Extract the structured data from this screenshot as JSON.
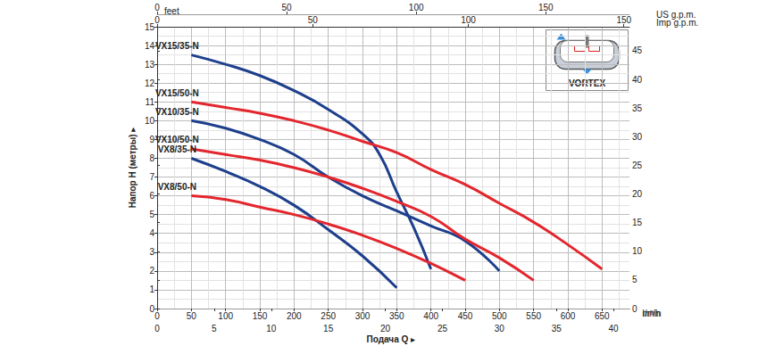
{
  "chart_data": {
    "type": "line",
    "x_axis_title": "Подача Q ▸",
    "y_axis_title": "Напор H (метры) ▸",
    "x_unit": "l/min",
    "xlim": [
      0,
      690
    ],
    "xticks": [
      0,
      50,
      100,
      150,
      200,
      250,
      300,
      350,
      400,
      450,
      500,
      550,
      600,
      650
    ],
    "ylim": [
      0,
      15
    ],
    "yticks": [
      0,
      1,
      2,
      3,
      4,
      5,
      6,
      7,
      8,
      9,
      10,
      11,
      12,
      13,
      14,
      15
    ],
    "y2label": "feet",
    "y2lim": [
      0,
      49.2
    ],
    "y2ticks": [
      0,
      5,
      10,
      15,
      20,
      25,
      30,
      35,
      40,
      45
    ],
    "x2": {
      "label": "US g.p.m.",
      "lim": [
        0,
        182.3
      ],
      "ticks": [
        0,
        50,
        100,
        150
      ]
    },
    "x3": {
      "label": "Imp g.p.m.",
      "lim": [
        0,
        151.8
      ],
      "ticks": [
        0,
        50,
        100,
        150
      ]
    },
    "x4": {
      "label": "m³/h",
      "lim": [
        0,
        41.4
      ],
      "ticks": [
        0,
        5,
        10,
        15,
        20,
        25,
        30,
        35,
        40
      ]
    },
    "annotation": "VORTEX",
    "grid": true,
    "series": [
      {
        "name": "VX15/35-N",
        "color": "#1d3f8c",
        "x": [
          50,
          100,
          150,
          200,
          250,
          300,
          325,
          350,
          375,
          400
        ],
        "values": [
          13.5,
          13.0,
          12.4,
          11.6,
          10.6,
          9.3,
          8.2,
          6.2,
          4.3,
          2.1
        ]
      },
      {
        "name": "VX15/50-N",
        "color": "#e3262d",
        "x": [
          50,
          100,
          150,
          200,
          250,
          300,
          350,
          400,
          450,
          500,
          550,
          600,
          650
        ],
        "values": [
          11.0,
          10.7,
          10.4,
          10.0,
          9.5,
          8.9,
          8.3,
          7.4,
          6.6,
          5.6,
          4.6,
          3.4,
          2.1
        ]
      },
      {
        "name": "VX10/35-N",
        "color": "#1d3f8c",
        "x": [
          50,
          100,
          150,
          200,
          250,
          300,
          350,
          400,
          450,
          500
        ],
        "values": [
          10.0,
          9.6,
          9.0,
          8.2,
          7.0,
          6.0,
          5.2,
          4.4,
          3.6,
          2.0
        ]
      },
      {
        "name": "VX10/50-N",
        "color": "#e3262d",
        "x": [
          50,
          100,
          150,
          200,
          250,
          300,
          350,
          400,
          450,
          500,
          550
        ],
        "values": [
          8.5,
          8.2,
          7.9,
          7.5,
          7.0,
          6.4,
          5.7,
          4.9,
          3.7,
          2.7,
          1.5
        ]
      },
      {
        "name": "VX8/35-N",
        "color": "#1d3f8c",
        "x": [
          50,
          100,
          150,
          200,
          250,
          300,
          350
        ],
        "values": [
          8.0,
          7.3,
          6.5,
          5.5,
          4.2,
          2.8,
          1.1
        ]
      },
      {
        "name": "VX8/50-N",
        "color": "#e3262d",
        "x": [
          50,
          100,
          150,
          200,
          250,
          300,
          350,
          400,
          450
        ],
        "values": [
          6.0,
          5.8,
          5.4,
          5.0,
          4.5,
          3.9,
          3.2,
          2.4,
          1.5
        ]
      }
    ]
  }
}
